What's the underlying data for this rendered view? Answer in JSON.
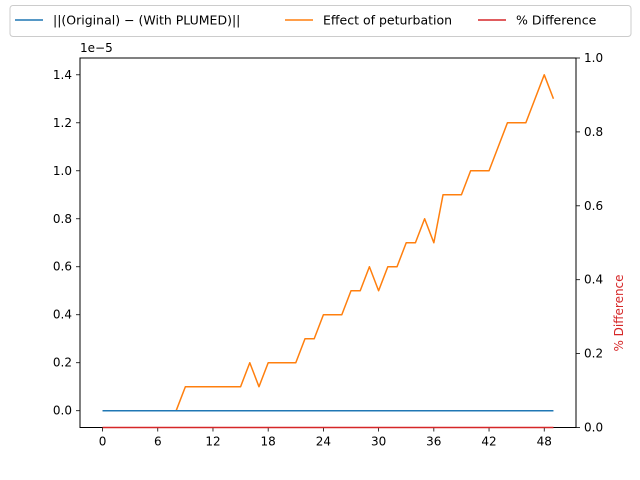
{
  "chart_data": {
    "type": "line",
    "y_scale_label": "1e−5",
    "y_ticks": [
      "0.0",
      "0.2",
      "0.4",
      "0.6",
      "0.8",
      "1.0",
      "1.2",
      "1.4"
    ],
    "ylim": [
      -7e-07,
      1.47e-05
    ],
    "x_ticks": [
      "0",
      "6",
      "12",
      "18",
      "24",
      "30",
      "36",
      "42",
      "48"
    ],
    "xlim": [
      -2.45,
      51.45
    ],
    "y2label": "% Difference",
    "y2_ticks": [
      "0.0",
      "0.2",
      "0.4",
      "0.6",
      "0.8",
      "1.0"
    ],
    "y2lim": [
      0,
      1
    ],
    "legend_placement": "top, outside",
    "series": [
      {
        "name": "||(Original) − (With PLUMED)||",
        "color": "#1f77b4",
        "axis": "left",
        "x": [
          0,
          1,
          2,
          3,
          4,
          5,
          6,
          7,
          8,
          9,
          10,
          11,
          12,
          13,
          14,
          15,
          16,
          17,
          18,
          19,
          20,
          21,
          22,
          23,
          24,
          25,
          26,
          27,
          28,
          29,
          30,
          31,
          32,
          33,
          34,
          35,
          36,
          37,
          38,
          39,
          40,
          41,
          42,
          43,
          44,
          45,
          46,
          47,
          48,
          49
        ],
        "values": [
          0,
          0,
          0,
          0,
          0,
          0,
          0,
          0,
          0,
          0,
          0,
          0,
          0,
          0,
          0,
          0,
          0,
          0,
          0,
          0,
          0,
          0,
          0,
          0,
          0,
          0,
          0,
          0,
          0,
          0,
          0,
          0,
          0,
          0,
          0,
          0,
          0,
          0,
          0,
          0,
          0,
          0,
          0,
          0,
          0,
          0,
          0,
          0,
          0,
          0
        ]
      },
      {
        "name": "Effect of peturbation",
        "color": "#ff7f0e",
        "axis": "left",
        "x": [
          0,
          1,
          2,
          3,
          4,
          5,
          6,
          7,
          8,
          9,
          10,
          11,
          12,
          13,
          14,
          15,
          16,
          17,
          18,
          19,
          20,
          21,
          22,
          23,
          24,
          25,
          26,
          27,
          28,
          29,
          30,
          31,
          32,
          33,
          34,
          35,
          36,
          37,
          38,
          39,
          40,
          41,
          42,
          43,
          44,
          45,
          46,
          47,
          48,
          49
        ],
        "values": [
          0,
          0,
          0,
          0,
          0,
          0,
          0,
          0,
          0,
          1e-06,
          1e-06,
          1e-06,
          1e-06,
          1e-06,
          1e-06,
          1e-06,
          2e-06,
          1e-06,
          2e-06,
          2e-06,
          2e-06,
          2e-06,
          3e-06,
          3e-06,
          4e-06,
          4e-06,
          4e-06,
          5e-06,
          5e-06,
          6e-06,
          5e-06,
          6e-06,
          6e-06,
          7e-06,
          7e-06,
          8e-06,
          7e-06,
          9e-06,
          9e-06,
          9e-06,
          1e-05,
          1e-05,
          1e-05,
          1.1e-05,
          1.2e-05,
          1.2e-05,
          1.2e-05,
          1.3e-05,
          1.4e-05,
          1.3e-05
        ]
      },
      {
        "name": "% Difference",
        "color": "#d62728",
        "axis": "right",
        "x": [
          0,
          1,
          2,
          3,
          4,
          5,
          6,
          7,
          8,
          9,
          10,
          11,
          12,
          13,
          14,
          15,
          16,
          17,
          18,
          19,
          20,
          21,
          22,
          23,
          24,
          25,
          26,
          27,
          28,
          29,
          30,
          31,
          32,
          33,
          34,
          35,
          36,
          37,
          38,
          39,
          40,
          41,
          42,
          43,
          44,
          45,
          46,
          47,
          48,
          49
        ],
        "values": [
          0,
          0,
          0,
          0,
          0,
          0,
          0,
          0,
          0,
          0,
          0,
          0,
          0,
          0,
          0,
          0,
          0,
          0,
          0,
          0,
          0,
          0,
          0,
          0,
          0,
          0,
          0,
          0,
          0,
          0,
          0,
          0,
          0,
          0,
          0,
          0,
          0,
          0,
          0,
          0,
          0,
          0,
          0,
          0,
          0,
          0,
          0,
          0,
          0,
          0
        ]
      }
    ]
  }
}
